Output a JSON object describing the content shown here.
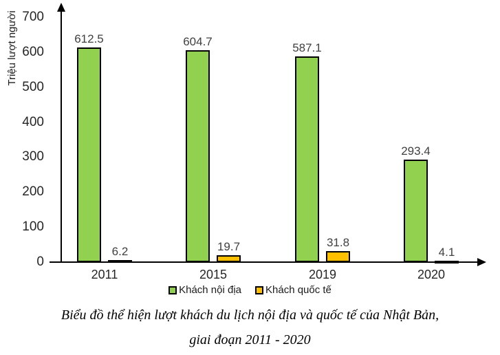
{
  "chart_data": {
    "type": "bar",
    "categories": [
      "2011",
      "2015",
      "2019",
      "2020"
    ],
    "series": [
      {
        "name": "Khách nội địa",
        "color": "#92D050",
        "values": [
          612.5,
          604.7,
          587.1,
          293.4
        ],
        "labels": [
          "612.5",
          "604.7",
          "587.1",
          "293.4"
        ]
      },
      {
        "name": "Khách quốc tế",
        "color": "#FFC000",
        "values": [
          6.2,
          19.7,
          31.8,
          4.1
        ],
        "labels": [
          "6.2",
          "19.7",
          "31.8",
          "4.1"
        ]
      }
    ],
    "title": "Biểu đồ thể hiện lượt khách du lịch nội địa và quốc tế của Nhật Bản, giai đoạn 2011 - 2020",
    "xlabel": "",
    "ylabel": "Triệu lượt người",
    "yticks": [
      0,
      100,
      200,
      300,
      400,
      500,
      600,
      700
    ],
    "ylim": [
      0,
      700
    ],
    "grid": false,
    "legend_position": "bottom",
    "bar_border_color": "#000000",
    "axis_color": "#000000"
  },
  "caption": {
    "line1": "Biểu đồ thể hiện lượt khách du lịch nội địa và quốc tế của Nhật Bản,",
    "line2": "giai đoạn 2011 - 2020"
  }
}
